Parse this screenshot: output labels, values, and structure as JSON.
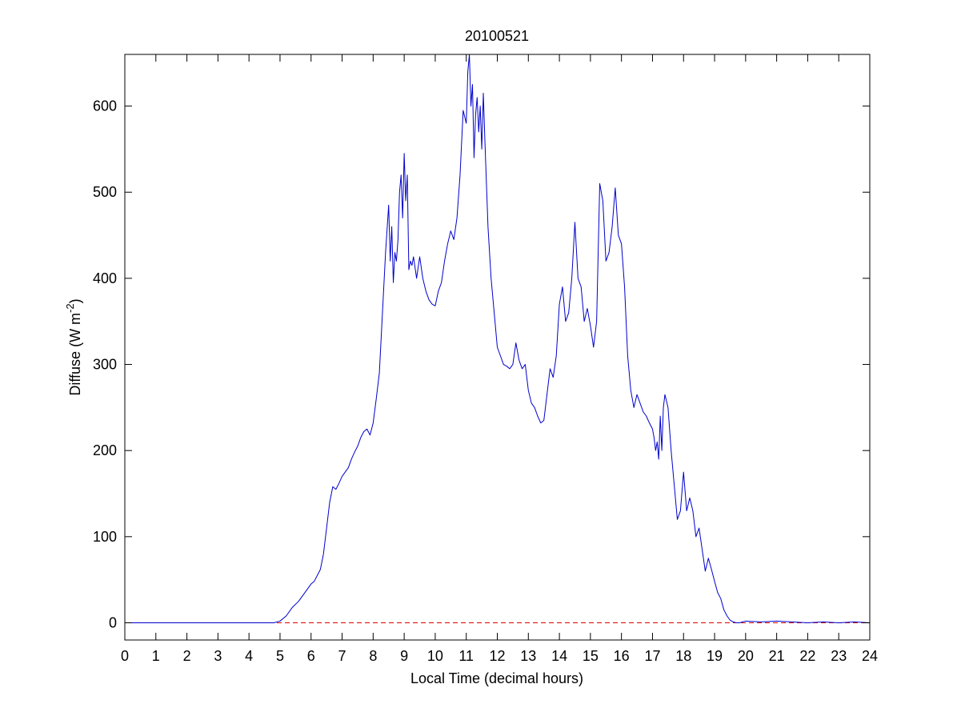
{
  "chart_data": {
    "type": "line",
    "title": "20100521",
    "xlabel": "Local Time (decimal hours)",
    "ylabel_main": "Diffuse (W m",
    "ylabel_sup": "-2",
    "ylabel_end": ")",
    "xlim": [
      0,
      24
    ],
    "ylim": [
      -20,
      660
    ],
    "xticks": [
      0,
      1,
      2,
      3,
      4,
      5,
      6,
      7,
      8,
      9,
      10,
      11,
      12,
      13,
      14,
      15,
      16,
      17,
      18,
      19,
      20,
      21,
      22,
      23,
      24
    ],
    "yticks": [
      0,
      100,
      200,
      300,
      400,
      500,
      600
    ],
    "grid": false,
    "series": [
      {
        "color": "#0000cc",
        "style": "solid",
        "x": [
          0,
          4.5,
          4.8,
          5.0,
          5.2,
          5.4,
          5.6,
          5.8,
          6.0,
          6.1,
          6.2,
          6.3,
          6.4,
          6.5,
          6.6,
          6.7,
          6.8,
          6.9,
          7.0,
          7.1,
          7.2,
          7.3,
          7.4,
          7.5,
          7.6,
          7.7,
          7.8,
          7.9,
          8.0,
          8.1,
          8.2,
          8.3,
          8.4,
          8.5,
          8.55,
          8.6,
          8.65,
          8.7,
          8.75,
          8.8,
          8.85,
          8.9,
          8.95,
          9.0,
          9.05,
          9.1,
          9.15,
          9.2,
          9.25,
          9.3,
          9.4,
          9.5,
          9.6,
          9.7,
          9.8,
          9.9,
          10.0,
          10.1,
          10.2,
          10.3,
          10.4,
          10.5,
          10.6,
          10.7,
          10.8,
          10.9,
          11.0,
          11.05,
          11.1,
          11.15,
          11.2,
          11.25,
          11.3,
          11.35,
          11.4,
          11.45,
          11.5,
          11.55,
          11.6,
          11.7,
          11.8,
          11.9,
          12.0,
          12.1,
          12.2,
          12.3,
          12.4,
          12.5,
          12.6,
          12.7,
          12.8,
          12.9,
          13.0,
          13.1,
          13.2,
          13.3,
          13.4,
          13.5,
          13.6,
          13.7,
          13.8,
          13.9,
          14.0,
          14.1,
          14.2,
          14.3,
          14.4,
          14.5,
          14.6,
          14.7,
          14.8,
          14.9,
          15.0,
          15.1,
          15.2,
          15.3,
          15.4,
          15.5,
          15.6,
          15.7,
          15.8,
          15.9,
          16.0,
          16.1,
          16.2,
          16.3,
          16.4,
          16.5,
          16.6,
          16.7,
          16.8,
          16.9,
          17.0,
          17.05,
          17.1,
          17.15,
          17.2,
          17.25,
          17.3,
          17.35,
          17.4,
          17.5,
          17.6,
          17.7,
          17.8,
          17.9,
          18.0,
          18.1,
          18.2,
          18.3,
          18.4,
          18.5,
          18.6,
          18.7,
          18.8,
          18.9,
          19.0,
          19.1,
          19.2,
          19.3,
          19.4,
          19.5,
          19.6,
          19.7,
          19.8,
          20.0,
          20.5,
          21.0,
          21.5,
          22.0,
          22.5,
          23.0,
          23.5,
          24.0
        ],
        "y": [
          0,
          0,
          0,
          2,
          8,
          18,
          25,
          35,
          45,
          48,
          55,
          62,
          80,
          110,
          140,
          158,
          155,
          162,
          170,
          175,
          180,
          190,
          198,
          205,
          215,
          222,
          225,
          218,
          232,
          260,
          290,
          360,
          430,
          485,
          420,
          460,
          395,
          430,
          420,
          445,
          500,
          520,
          470,
          545,
          490,
          520,
          410,
          420,
          415,
          425,
          400,
          425,
          400,
          385,
          375,
          370,
          368,
          385,
          395,
          420,
          440,
          455,
          445,
          470,
          520,
          595,
          580,
          640,
          660,
          600,
          625,
          540,
          590,
          610,
          570,
          600,
          550,
          615,
          560,
          460,
          400,
          360,
          320,
          310,
          300,
          298,
          295,
          300,
          325,
          305,
          295,
          300,
          270,
          255,
          250,
          240,
          232,
          235,
          265,
          295,
          285,
          310,
          370,
          390,
          350,
          360,
          400,
          465,
          400,
          390,
          350,
          365,
          345,
          320,
          350,
          510,
          490,
          420,
          430,
          460,
          505,
          450,
          440,
          390,
          310,
          270,
          250,
          265,
          255,
          245,
          240,
          232,
          225,
          215,
          200,
          210,
          190,
          240,
          200,
          250,
          265,
          250,
          200,
          160,
          120,
          130,
          175,
          130,
          145,
          130,
          100,
          110,
          85,
          60,
          75,
          62,
          48,
          35,
          28,
          15,
          8,
          3,
          1,
          0,
          0,
          2,
          1,
          2,
          1,
          0,
          1,
          0,
          1,
          0
        ]
      },
      {
        "color": "#dd0000",
        "style": "dashed",
        "x": [
          0,
          24
        ],
        "y": [
          0,
          0
        ]
      }
    ]
  }
}
